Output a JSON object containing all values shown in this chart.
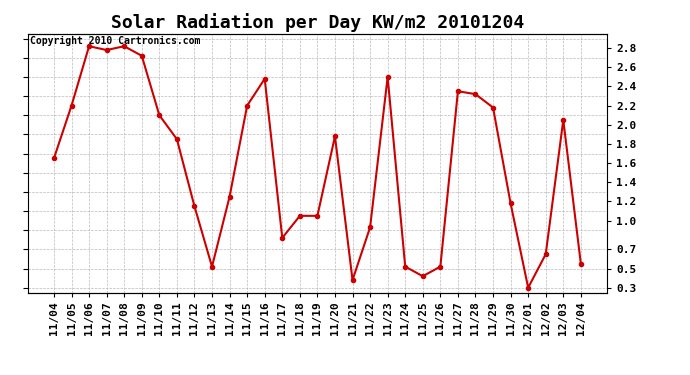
{
  "title": "Solar Radiation per Day KW/m2 20101204",
  "copyright_text": "Copyright 2010 Cartronics.com",
  "x_labels": [
    "11/04",
    "11/05",
    "11/06",
    "11/07",
    "11/08",
    "11/09",
    "11/10",
    "11/11",
    "11/12",
    "11/13",
    "11/14",
    "11/15",
    "11/16",
    "11/17",
    "11/18",
    "11/19",
    "11/20",
    "11/21",
    "11/22",
    "11/23",
    "11/24",
    "11/25",
    "11/26",
    "11/27",
    "11/28",
    "11/29",
    "11/30",
    "12/01",
    "12/02",
    "12/03",
    "12/04"
  ],
  "y_values": [
    1.65,
    2.2,
    2.82,
    2.78,
    2.82,
    2.72,
    2.1,
    1.85,
    1.15,
    0.52,
    1.25,
    2.2,
    2.48,
    0.82,
    1.05,
    1.05,
    1.88,
    0.38,
    0.93,
    2.5,
    0.52,
    0.42,
    0.52,
    2.35,
    2.32,
    2.18,
    1.18,
    0.3,
    0.65,
    2.05,
    0.55
  ],
  "line_color": "#cc0000",
  "marker": "o",
  "marker_size": 3,
  "ylim": [
    0.25,
    2.95
  ],
  "yticks": [
    0.3,
    0.5,
    0.7,
    0.9,
    1.1,
    1.3,
    1.5,
    1.7,
    1.9,
    2.1,
    2.3,
    2.5,
    2.7,
    2.9
  ],
  "right_yticks": [
    0.3,
    0.5,
    0.7,
    1.0,
    1.2,
    1.4,
    1.6,
    1.8,
    2.0,
    2.2,
    2.4,
    2.6,
    2.8
  ],
  "right_ytick_labels": [
    "0.3",
    "0.5",
    "0.7",
    "1.0",
    "1.2",
    "1.4",
    "1.6",
    "1.8",
    "2.0",
    "2.2",
    "2.4",
    "2.6",
    "2.8"
  ],
  "bg_color": "#ffffff",
  "grid_color": "#aaaaaa",
  "title_fontsize": 13,
  "copyright_fontsize": 7,
  "tick_fontsize": 8,
  "fig_width": 6.9,
  "fig_height": 3.75,
  "dpi": 100
}
